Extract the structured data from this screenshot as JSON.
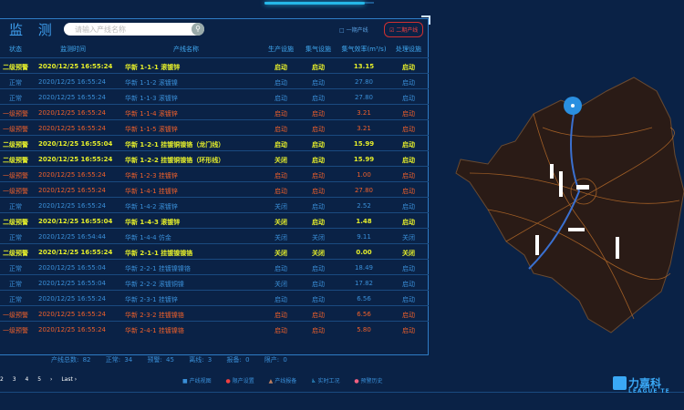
{
  "panel": {
    "title": "监 测",
    "search_placeholder": "请输入产线名称",
    "search_icon": "search-icon",
    "phase1": "□ 一期产线",
    "phase2": "☑ 二期产线"
  },
  "colors": {
    "yellow": "#e6ef2a",
    "blue": "#3a8fd8",
    "orange": "#f0602a",
    "background": "#0a2246"
  },
  "table": {
    "headers": [
      "状态",
      "监测时间",
      "产线名称",
      "生产设施",
      "集气设施",
      "集气效率(m³/s)",
      "处理设施"
    ],
    "rows": [
      {
        "level": "yellow",
        "cells": [
          "二级预警",
          "2020/12/25 16:55:24",
          "华新 1-1-1 滚镀锌",
          "启动",
          "启动",
          "13.15",
          "启动"
        ]
      },
      {
        "level": "blue",
        "cells": [
          "正常",
          "2020/12/25 16:55:24",
          "华新 1-1-2 滚镀镍",
          "启动",
          "启动",
          "27.80",
          "启动"
        ]
      },
      {
        "level": "blue",
        "cells": [
          "正常",
          "2020/12/25 16:55:24",
          "华新 1-1-3 滚镀锌",
          "启动",
          "启动",
          "27.80",
          "启动"
        ]
      },
      {
        "level": "orange",
        "cells": [
          "一级预警",
          "2020/12/25 16:55:24",
          "华新 1-1-4 滚镀锌",
          "启动",
          "启动",
          "3.21",
          "启动"
        ]
      },
      {
        "level": "orange",
        "cells": [
          "一级预警",
          "2020/12/25 16:55:24",
          "华新 1-1-5 滚镀锌",
          "启动",
          "启动",
          "3.21",
          "启动"
        ]
      },
      {
        "level": "yellow",
        "cells": [
          "二级预警",
          "2020/12/25 16:55:04",
          "华新 1-2-1 挂镀铜镍铬（龙门线）",
          "启动",
          "启动",
          "15.99",
          "启动"
        ]
      },
      {
        "level": "yellow",
        "cells": [
          "二级预警",
          "2020/12/25 16:55:24",
          "华新 1-2-2 挂镀铜镍铬（环形线）",
          "关闭",
          "启动",
          "15.99",
          "启动"
        ]
      },
      {
        "level": "orange",
        "cells": [
          "一级预警",
          "2020/12/25 16:55:24",
          "华新 1-2-3 挂镀锌",
          "启动",
          "启动",
          "1.00",
          "启动"
        ]
      },
      {
        "level": "orange",
        "cells": [
          "一级预警",
          "2020/12/25 16:55:24",
          "华新 1-4-1 挂镀锌",
          "启动",
          "启动",
          "27.80",
          "启动"
        ]
      },
      {
        "level": "blue",
        "cells": [
          "正常",
          "2020/12/25 16:55:24",
          "华新 1-4-2 滚镀锌",
          "关闭",
          "启动",
          "2.52",
          "启动"
        ]
      },
      {
        "level": "yellow",
        "cells": [
          "二级预警",
          "2020/12/25 16:55:04",
          "华新 1-4-3 滚镀锌",
          "关闭",
          "启动",
          "1.48",
          "启动"
        ]
      },
      {
        "level": "blue",
        "cells": [
          "正常",
          "2020/12/25 16:54:44",
          "华新 1-4-4 仿金",
          "关闭",
          "关闭",
          "9.11",
          "关闭"
        ]
      },
      {
        "level": "yellow",
        "cells": [
          "二级预警",
          "2020/12/25 16:55:24",
          "华新 2-1-1 挂镀镍镍铬",
          "关闭",
          "关闭",
          "0.00",
          "关闭"
        ]
      },
      {
        "level": "blue",
        "cells": [
          "正常",
          "2020/12/25 16:55:04",
          "华新 2-2-1 挂镀镍镍铬",
          "启动",
          "启动",
          "18.49",
          "启动"
        ]
      },
      {
        "level": "blue",
        "cells": [
          "正常",
          "2020/12/25 16:55:04",
          "华新 2-2-2 滚镀铜镍",
          "关闭",
          "启动",
          "17.82",
          "启动"
        ]
      },
      {
        "level": "blue",
        "cells": [
          "正常",
          "2020/12/25 16:55:24",
          "华新 2-3-1 挂镀锌",
          "启动",
          "启动",
          "6.56",
          "启动"
        ]
      },
      {
        "level": "orange",
        "cells": [
          "一级预警",
          "2020/12/25 16:55:24",
          "华新 2-3-2 挂镀镍铬",
          "启动",
          "启动",
          "6.56",
          "启动"
        ]
      },
      {
        "level": "orange",
        "cells": [
          "一级预警",
          "2020/12/25 16:55:24",
          "华新 2-4-1 挂镀镍铬",
          "启动",
          "启动",
          "5.80",
          "启动"
        ]
      }
    ]
  },
  "stats": [
    "产线总数: 82",
    "正常: 34",
    "预警: 45",
    "离线: 3",
    "报备: 0",
    "限产: 0"
  ],
  "pager": [
    "2",
    "3",
    "4",
    "5",
    "›",
    "Last ›"
  ],
  "legend": [
    {
      "icon": "line-view-icon",
      "label": "产线视图"
    },
    {
      "icon": "limit-setting-icon",
      "label": "限产设置"
    },
    {
      "icon": "warning-triangle-icon",
      "label": "产线报备"
    },
    {
      "icon": "realtime-icon",
      "label": "实时工况"
    },
    {
      "icon": "alarm-history-icon",
      "label": "预警历史"
    }
  ],
  "logo": {
    "cn": "力嘉科",
    "en": "LEAGUE TE"
  }
}
